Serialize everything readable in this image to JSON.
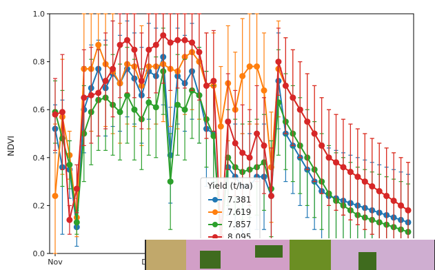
{
  "chart_data": {
    "type": "line",
    "ylabel": "NDVI",
    "xlabel": "",
    "ylim": [
      0.0,
      1.0
    ],
    "yticks": [
      "0.0",
      "0.2",
      "0.4",
      "0.6",
      "0.8",
      "1.0"
    ],
    "xtick_labels": [
      "Nov",
      "Dec"
    ],
    "grid": false,
    "legend": {
      "title": "Yield (t/ha)",
      "placement": "lower-center"
    },
    "x": [
      1,
      2,
      3,
      4,
      5,
      6,
      7,
      8,
      9,
      10,
      11,
      12,
      13,
      14,
      15,
      16,
      17,
      18,
      19,
      20,
      21,
      22,
      23,
      24,
      25,
      26,
      27,
      28,
      29,
      30,
      31,
      32,
      33,
      34,
      35,
      36,
      37,
      38,
      39,
      40,
      41,
      42,
      43,
      44,
      45,
      46,
      47,
      48,
      49,
      50
    ],
    "series": [
      {
        "name": "7.381",
        "color": "#1f77b4",
        "values": [
          0.52,
          0.36,
          0.35,
          0.11,
          0.6,
          0.69,
          0.77,
          0.69,
          0.75,
          0.71,
          0.77,
          0.73,
          0.66,
          0.76,
          0.74,
          0.82,
          0.41,
          0.74,
          0.71,
          0.76,
          0.66,
          0.52,
          0.5,
          0.07,
          0.36,
          0.32,
          0.28,
          0.28,
          0.32,
          0.32,
          0.24,
          0.72,
          0.5,
          0.45,
          0.4,
          0.35,
          0.3,
          0.26,
          0.24,
          0.23,
          0.22,
          0.21,
          0.2,
          0.19,
          0.18,
          0.17,
          0.16,
          0.15,
          0.14,
          0.13
        ],
        "errors": [
          0.1,
          0.28,
          0.12,
          0.08,
          0.18,
          0.18,
          0.12,
          0.2,
          0.22,
          0.2,
          0.2,
          0.19,
          0.2,
          0.2,
          0.2,
          0.2,
          0.2,
          0.2,
          0.2,
          0.2,
          0.2,
          0.24,
          0.2,
          0.06,
          0.2,
          0.22,
          0.22,
          0.22,
          0.22,
          0.22,
          0.2,
          0.2,
          0.2,
          0.2,
          0.2,
          0.2,
          0.2,
          0.2,
          0.2,
          0.2,
          0.2,
          0.2,
          0.2,
          0.2,
          0.2,
          0.2,
          0.2,
          0.2,
          0.2,
          0.2
        ]
      },
      {
        "name": "7.619",
        "color": "#ff7f0e",
        "values": [
          0.24,
          0.57,
          0.41,
          0.15,
          0.77,
          0.77,
          0.87,
          0.79,
          0.76,
          0.71,
          0.79,
          0.78,
          0.7,
          0.78,
          0.78,
          0.79,
          0.77,
          0.76,
          0.82,
          0.84,
          0.8,
          0.7,
          0.7,
          0.53,
          0.71,
          0.6,
          0.74,
          0.78,
          0.78,
          0.68,
          0.36,
          0.77,
          0.7,
          0.65,
          0.6,
          0.55,
          0.5,
          0.45,
          0.4,
          0.38,
          0.36,
          0.34,
          0.32,
          0.3,
          0.28,
          0.26,
          0.24,
          0.22,
          0.2,
          0.18
        ],
        "errors": [
          0.3,
          0.24,
          0.1,
          0.08,
          0.26,
          0.26,
          0.24,
          0.26,
          0.26,
          0.25,
          0.25,
          0.25,
          0.25,
          0.26,
          0.24,
          0.24,
          0.24,
          0.24,
          0.24,
          0.24,
          0.24,
          0.22,
          0.22,
          0.25,
          0.24,
          0.24,
          0.24,
          0.24,
          0.24,
          0.24,
          0.23,
          0.2,
          0.2,
          0.2,
          0.2,
          0.2,
          0.2,
          0.2,
          0.2,
          0.2,
          0.2,
          0.2,
          0.2,
          0.2,
          0.2,
          0.2,
          0.2,
          0.2,
          0.2,
          0.2
        ]
      },
      {
        "name": "7.857",
        "color": "#2ca02c",
        "values": [
          0.59,
          0.48,
          0.37,
          0.13,
          0.5,
          0.59,
          0.64,
          0.65,
          0.62,
          0.59,
          0.66,
          0.6,
          0.56,
          0.63,
          0.61,
          0.76,
          0.3,
          0.62,
          0.6,
          0.68,
          0.66,
          0.56,
          0.49,
          0.05,
          0.4,
          0.36,
          0.34,
          0.35,
          0.36,
          0.38,
          0.27,
          0.63,
          0.55,
          0.5,
          0.45,
          0.4,
          0.35,
          0.3,
          0.25,
          0.22,
          0.2,
          0.18,
          0.16,
          0.15,
          0.14,
          0.13,
          0.12,
          0.11,
          0.1,
          0.09
        ],
        "errors": [
          0.13,
          0.2,
          0.1,
          0.05,
          0.2,
          0.22,
          0.21,
          0.22,
          0.21,
          0.2,
          0.2,
          0.21,
          0.21,
          0.22,
          0.21,
          0.18,
          0.2,
          0.21,
          0.21,
          0.2,
          0.2,
          0.2,
          0.21,
          0.05,
          0.2,
          0.2,
          0.2,
          0.2,
          0.2,
          0.2,
          0.2,
          0.22,
          0.2,
          0.2,
          0.2,
          0.2,
          0.2,
          0.2,
          0.2,
          0.2,
          0.2,
          0.2,
          0.2,
          0.2,
          0.2,
          0.2,
          0.2,
          0.2,
          0.2,
          0.2
        ]
      },
      {
        "name": "8.095",
        "color": "#d62728",
        "values": [
          0.58,
          0.59,
          0.14,
          0.27,
          0.65,
          0.66,
          0.67,
          0.72,
          0.77,
          0.87,
          0.89,
          0.85,
          0.72,
          0.85,
          0.87,
          0.91,
          0.88,
          0.89,
          0.89,
          0.88,
          0.84,
          0.7,
          0.72,
          0.07,
          0.55,
          0.46,
          0.42,
          0.4,
          0.5,
          0.45,
          0.24,
          0.8,
          0.7,
          0.65,
          0.6,
          0.55,
          0.5,
          0.45,
          0.4,
          0.38,
          0.36,
          0.34,
          0.32,
          0.3,
          0.28,
          0.26,
          0.24,
          0.22,
          0.2,
          0.18
        ],
        "errors": [
          0.15,
          0.24,
          0.06,
          0.1,
          0.2,
          0.2,
          0.18,
          0.2,
          0.2,
          0.22,
          0.22,
          0.2,
          0.2,
          0.2,
          0.2,
          0.2,
          0.2,
          0.2,
          0.2,
          0.2,
          0.2,
          0.22,
          0.21,
          0.07,
          0.2,
          0.22,
          0.2,
          0.2,
          0.2,
          0.2,
          0.2,
          0.14,
          0.2,
          0.2,
          0.2,
          0.2,
          0.2,
          0.2,
          0.2,
          0.2,
          0.2,
          0.2,
          0.2,
          0.2,
          0.2,
          0.2,
          0.2,
          0.2,
          0.2,
          0.2
        ]
      }
    ]
  }
}
